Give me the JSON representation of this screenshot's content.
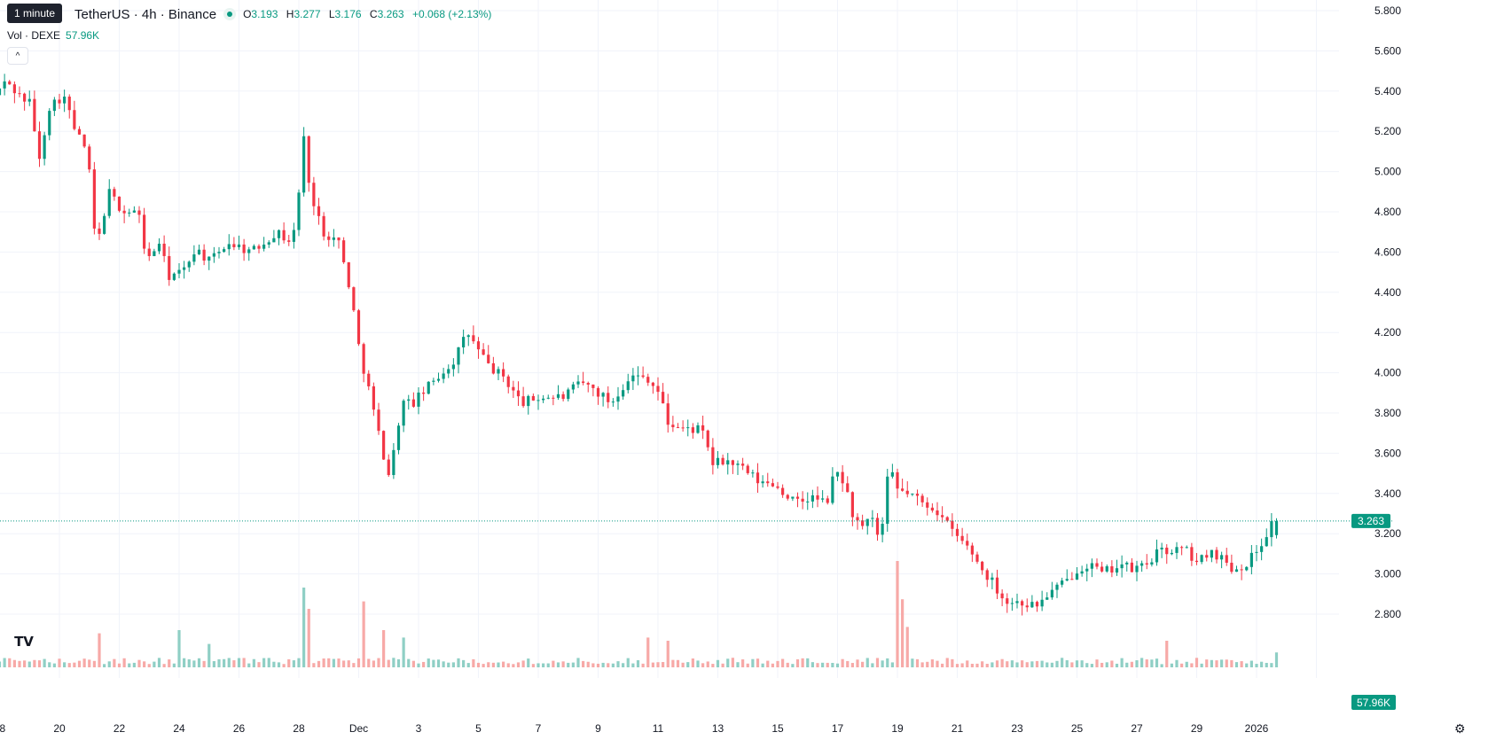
{
  "header": {
    "tooltip": "1 minute",
    "symbol": "TetherUS · 4h · Binance",
    "open_label": "O",
    "open": "3.193",
    "high_label": "H",
    "high": "3.277",
    "low_label": "L",
    "low": "3.176",
    "close_label": "C",
    "close": "3.263",
    "change": "+0.068 (+2.13%)"
  },
  "volume": {
    "label": "Vol · DEXE",
    "value": "57.96K"
  },
  "icons": {
    "collapse": "chevron-up-icon",
    "logo": "tradingview-logo",
    "settings": "gear-icon"
  },
  "colors": {
    "up": "#089981",
    "down": "#f23645",
    "up_vol": "#8fcfc5",
    "down_vol": "#f7a9a7",
    "grid": "#f0f3fa"
  },
  "chart_data": {
    "type": "candlestick",
    "interval": "4h",
    "grid": true,
    "y_ticks": [
      5.8,
      5.6,
      5.4,
      5.2,
      5.0,
      4.8,
      4.6,
      4.4,
      4.2,
      4.0,
      3.8,
      3.6,
      3.4,
      3.2,
      3.0,
      2.8
    ],
    "y_tick_labels": [
      "5.800",
      "5.600",
      "5.400",
      "5.200",
      "5.000",
      "4.800",
      "4.600",
      "4.400",
      "4.200",
      "4.000",
      "3.800",
      "3.600",
      "3.400",
      "3.200",
      "3.000",
      "2.800"
    ],
    "ylim": [
      2.8,
      5.8
    ],
    "x_tick_labels": [
      "8",
      "20",
      "22",
      "24",
      "26",
      "28",
      "Dec",
      "3",
      "5",
      "7",
      "9",
      "11",
      "13",
      "15",
      "17",
      "19",
      "21",
      "23",
      "25",
      "27",
      "29",
      "2026"
    ],
    "x_range": [
      "2025-11-18",
      "2026-01-01"
    ],
    "last_price": "3.263",
    "last_volume": "57.96K",
    "anchors": [
      {
        "day": 18.0,
        "price": 5.38
      },
      {
        "day": 18.4,
        "price": 5.45
      },
      {
        "day": 18.8,
        "price": 5.38
      },
      {
        "day": 19.2,
        "price": 5.34
      },
      {
        "day": 19.5,
        "price": 5.05
      },
      {
        "day": 19.8,
        "price": 5.32
      },
      {
        "day": 20.3,
        "price": 5.38
      },
      {
        "day": 20.7,
        "price": 5.2
      },
      {
        "day": 21.1,
        "price": 5.1
      },
      {
        "day": 21.4,
        "price": 4.6
      },
      {
        "day": 21.8,
        "price": 4.9
      },
      {
        "day": 22.3,
        "price": 4.8
      },
      {
        "day": 22.8,
        "price": 4.8
      },
      {
        "day": 23.1,
        "price": 4.55
      },
      {
        "day": 23.5,
        "price": 4.65
      },
      {
        "day": 23.8,
        "price": 4.48
      },
      {
        "day": 24.3,
        "price": 4.5
      },
      {
        "day": 24.7,
        "price": 4.62
      },
      {
        "day": 25.2,
        "price": 4.55
      },
      {
        "day": 25.8,
        "price": 4.65
      },
      {
        "day": 26.6,
        "price": 4.6
      },
      {
        "day": 27.4,
        "price": 4.7
      },
      {
        "day": 27.9,
        "price": 4.65
      },
      {
        "day": 28.1,
        "price": 4.75
      },
      {
        "day": 28.3,
        "price": 5.2
      },
      {
        "day": 28.6,
        "price": 4.85
      },
      {
        "day": 29.0,
        "price": 4.7
      },
      {
        "day": 29.5,
        "price": 4.65
      },
      {
        "day": 29.9,
        "price": 4.4
      },
      {
        "day": 30.2,
        "price": 4.1
      },
      {
        "day": 30.5,
        "price": 3.92
      },
      {
        "day": 30.9,
        "price": 3.65
      },
      {
        "day": 31.2,
        "price": 3.48
      },
      {
        "day": 31.6,
        "price": 3.85
      },
      {
        "day": 32.0,
        "price": 3.85
      },
      {
        "day": 32.3,
        "price": 3.9
      },
      {
        "day": 32.8,
        "price": 3.98
      },
      {
        "day": 33.3,
        "price": 4.05
      },
      {
        "day": 33.8,
        "price": 4.2
      },
      {
        "day": 34.2,
        "price": 4.1
      },
      {
        "day": 34.6,
        "price": 4.02
      },
      {
        "day": 35.0,
        "price": 3.98
      },
      {
        "day": 35.6,
        "price": 3.85
      },
      {
        "day": 36.3,
        "price": 3.88
      },
      {
        "day": 37.0,
        "price": 3.88
      },
      {
        "day": 37.6,
        "price": 3.95
      },
      {
        "day": 38.0,
        "price": 3.92
      },
      {
        "day": 38.6,
        "price": 3.85
      },
      {
        "day": 39.2,
        "price": 3.98
      },
      {
        "day": 39.8,
        "price": 3.98
      },
      {
        "day": 40.2,
        "price": 3.9
      },
      {
        "day": 40.5,
        "price": 3.75
      },
      {
        "day": 41.0,
        "price": 3.72
      },
      {
        "day": 41.6,
        "price": 3.72
      },
      {
        "day": 42.0,
        "price": 3.55
      },
      {
        "day": 42.5,
        "price": 3.56
      },
      {
        "day": 43.0,
        "price": 3.52
      },
      {
        "day": 43.6,
        "price": 3.45
      },
      {
        "day": 44.0,
        "price": 3.45
      },
      {
        "day": 44.4,
        "price": 3.4
      },
      {
        "day": 44.8,
        "price": 3.35
      },
      {
        "day": 45.3,
        "price": 3.38
      },
      {
        "day": 45.8,
        "price": 3.35
      },
      {
        "day": 46.1,
        "price": 3.52
      },
      {
        "day": 46.4,
        "price": 3.45
      },
      {
        "day": 46.7,
        "price": 3.28
      },
      {
        "day": 47.0,
        "price": 3.22
      },
      {
        "day": 47.3,
        "price": 3.28
      },
      {
        "day": 47.6,
        "price": 3.15
      },
      {
        "day": 47.9,
        "price": 3.55
      },
      {
        "day": 48.1,
        "price": 3.42
      },
      {
        "day": 48.6,
        "price": 3.4
      },
      {
        "day": 49.0,
        "price": 3.35
      },
      {
        "day": 49.4,
        "price": 3.33
      },
      {
        "day": 49.8,
        "price": 3.25
      },
      {
        "day": 50.2,
        "price": 3.18
      },
      {
        "day": 50.6,
        "price": 3.12
      },
      {
        "day": 51.0,
        "price": 3.02
      },
      {
        "day": 51.4,
        "price": 2.95
      },
      {
        "day": 51.8,
        "price": 2.86
      },
      {
        "day": 52.3,
        "price": 2.86
      },
      {
        "day": 52.8,
        "price": 2.84
      },
      {
        "day": 53.2,
        "price": 2.9
      },
      {
        "day": 53.8,
        "price": 2.96
      },
      {
        "day": 54.2,
        "price": 3.03
      },
      {
        "day": 54.6,
        "price": 3.05
      },
      {
        "day": 55.0,
        "price": 3.0
      },
      {
        "day": 55.6,
        "price": 3.05
      },
      {
        "day": 56.0,
        "price": 3.02
      },
      {
        "day": 56.5,
        "price": 3.05
      },
      {
        "day": 56.8,
        "price": 3.1
      },
      {
        "day": 57.3,
        "price": 3.12
      },
      {
        "day": 57.8,
        "price": 3.12
      },
      {
        "day": 58.2,
        "price": 3.05
      },
      {
        "day": 58.6,
        "price": 3.12
      },
      {
        "day": 59.0,
        "price": 3.08
      },
      {
        "day": 59.4,
        "price": 3.02
      },
      {
        "day": 59.8,
        "price": 3.05
      },
      {
        "day": 60.2,
        "price": 3.12
      },
      {
        "day": 60.5,
        "price": 3.2
      },
      {
        "day": 60.7,
        "price": 3.263
      }
    ],
    "volume_spikes": [
      {
        "day": 21.3,
        "rel": 0.32
      },
      {
        "day": 24.0,
        "rel": 0.35
      },
      {
        "day": 25.0,
        "rel": 0.22
      },
      {
        "day": 28.2,
        "rel": 0.75
      },
      {
        "day": 28.4,
        "rel": 0.55
      },
      {
        "day": 30.1,
        "rel": 0.62
      },
      {
        "day": 30.9,
        "rel": 0.35
      },
      {
        "day": 31.5,
        "rel": 0.28
      },
      {
        "day": 39.6,
        "rel": 0.28
      },
      {
        "day": 40.3,
        "rel": 0.25
      },
      {
        "day": 47.95,
        "rel": 1.0
      },
      {
        "day": 48.2,
        "rel": 0.64
      },
      {
        "day": 48.4,
        "rel": 0.38
      },
      {
        "day": 57.0,
        "rel": 0.25
      },
      {
        "day": 60.7,
        "rel": 0.14
      }
    ]
  }
}
